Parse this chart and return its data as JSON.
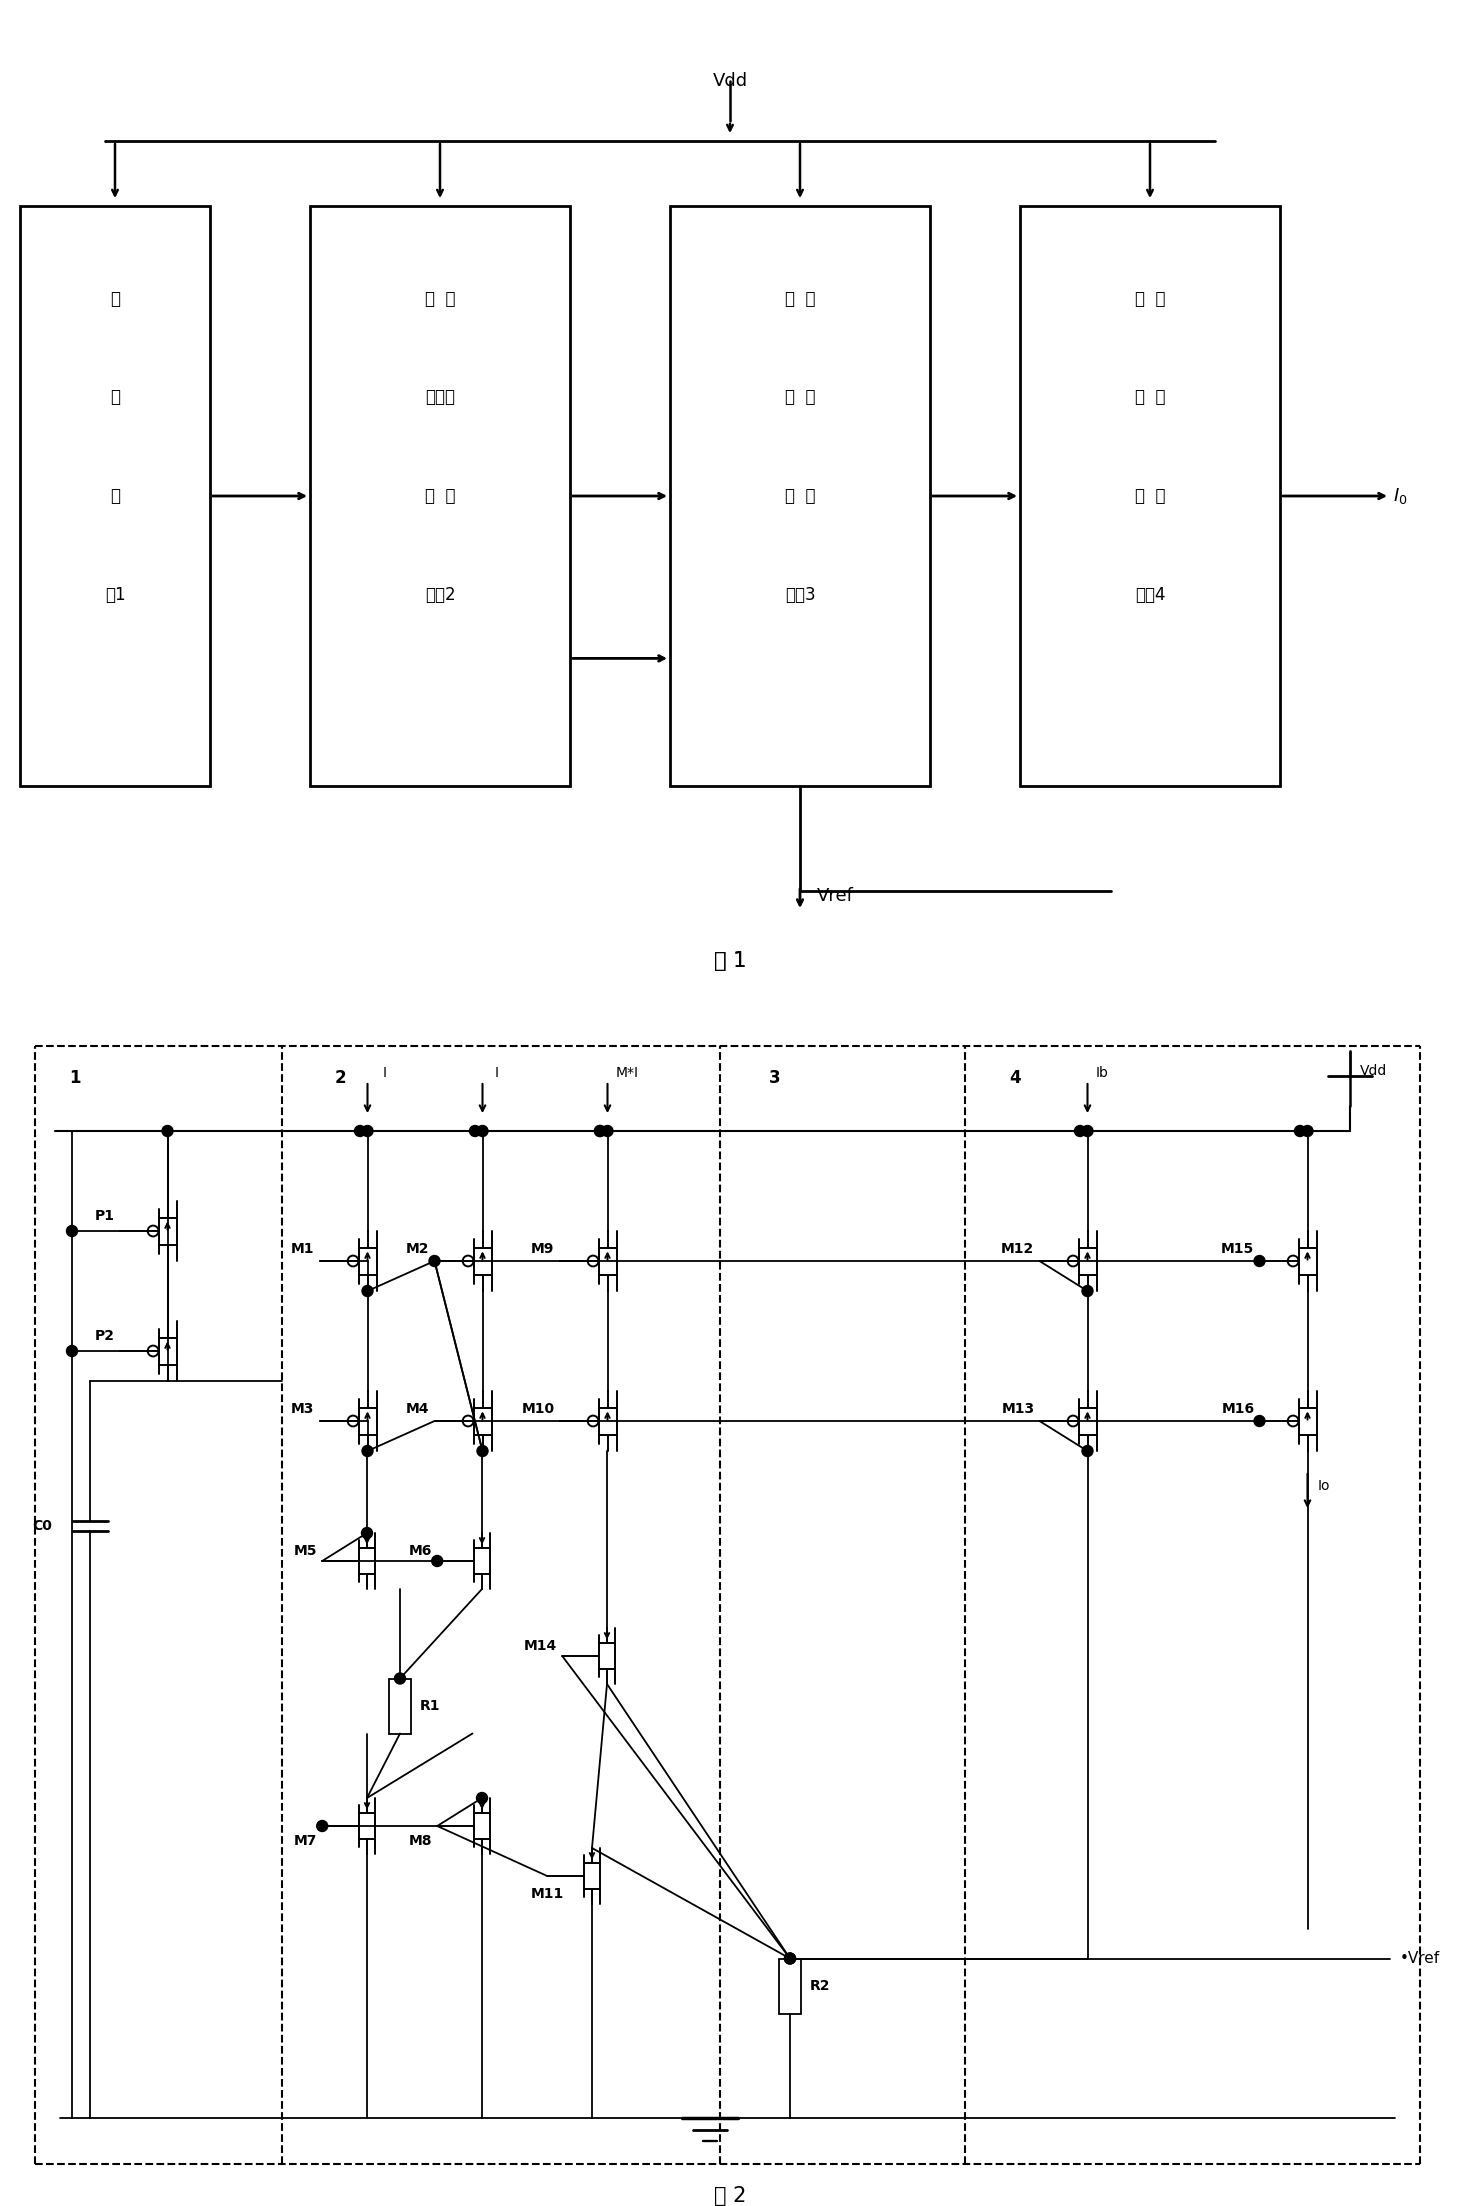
{
  "fig_w": 14.61,
  "fig_h": 22.06,
  "fig1_caption": "图 1",
  "fig2_caption": "图 2",
  "boxes": [
    {
      "label": [
        "启",
        "动",
        "电",
        "路1"
      ]
    },
    {
      "label": [
        "主  偏",
        "置电流",
        "产  生",
        "电路2"
      ]
    },
    {
      "label": [
        "基  准",
        "电  压",
        "产  生",
        "电路3"
      ]
    },
    {
      "label": [
        "基  准",
        "电  流",
        "产  生",
        "电路4"
      ]
    }
  ],
  "sec_labels": [
    "1",
    "2",
    "3",
    "4"
  ],
  "vdd": "Vdd",
  "vref": "Vref",
  "io": "I0",
  "transistors_pmos": [
    "P1",
    "P2",
    "M1",
    "M2",
    "M3",
    "M4",
    "M9",
    "M10",
    "M12",
    "M13",
    "M15",
    "M16"
  ],
  "transistors_nmos": [
    "M5",
    "M6",
    "M7",
    "M8",
    "M11",
    "M14"
  ],
  "current_labels": [
    "I",
    "I",
    "M*I",
    "Ib",
    "Io"
  ],
  "resistors": [
    "R1",
    "R2"
  ],
  "cap": "C0"
}
